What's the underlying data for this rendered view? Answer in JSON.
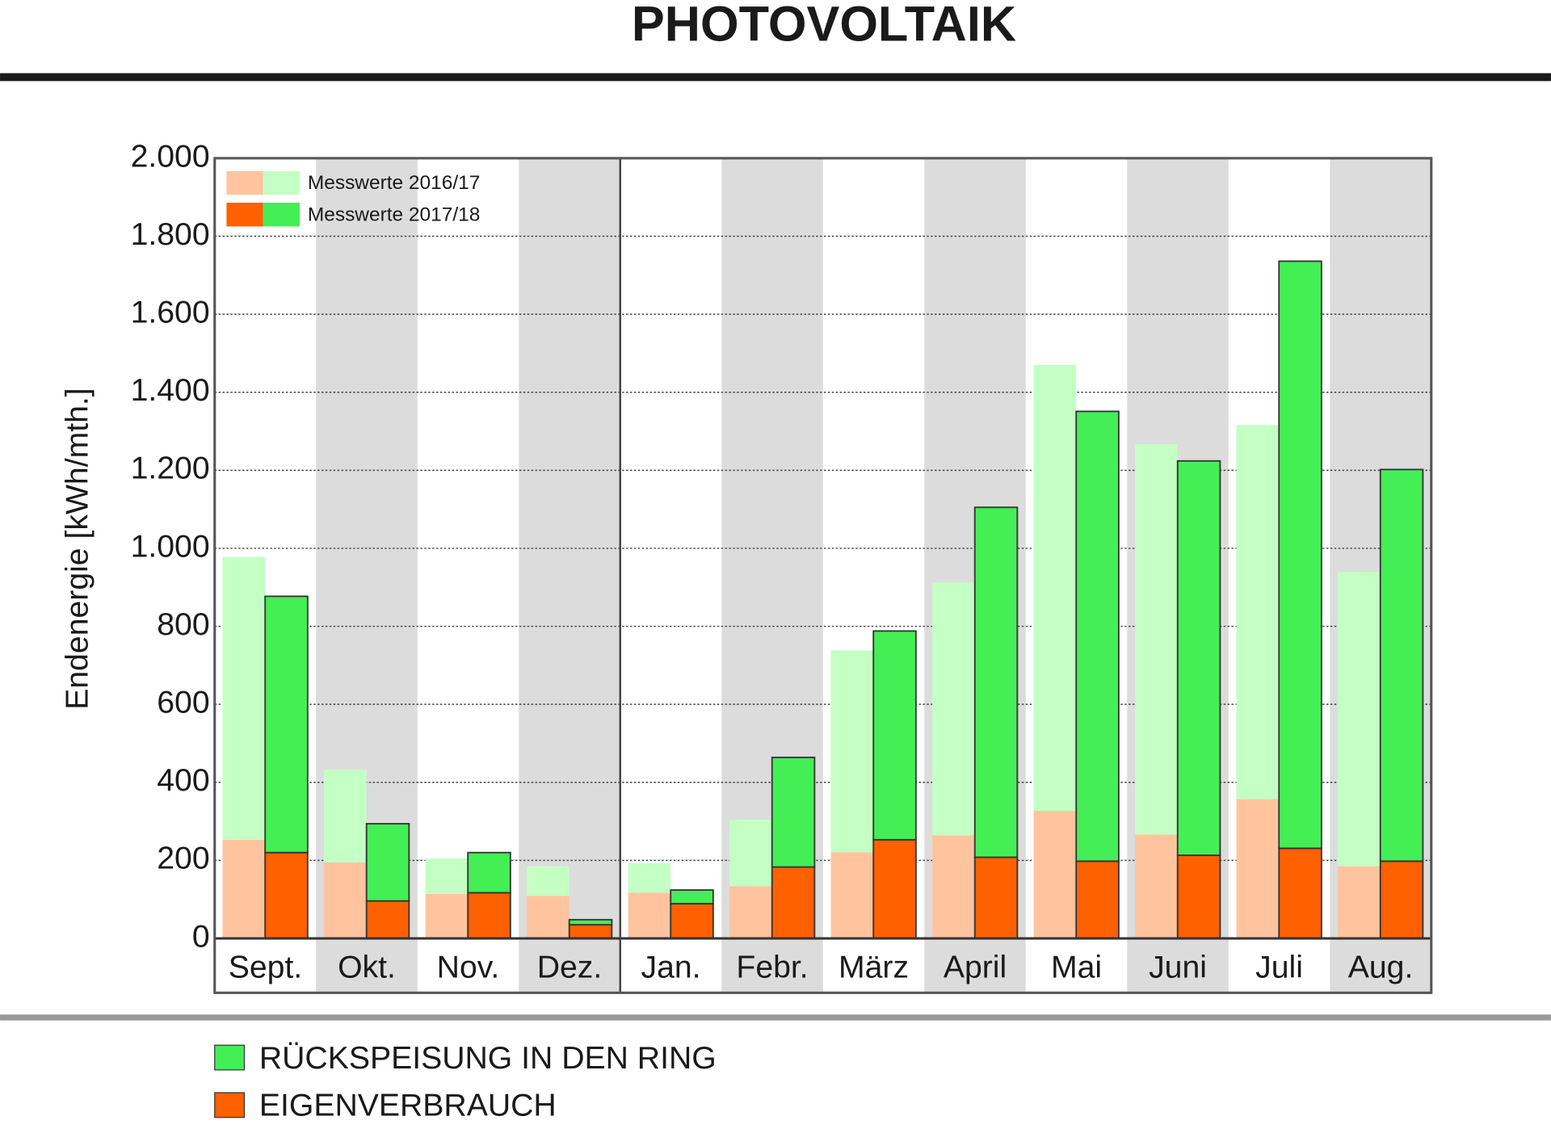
{
  "chart_data": {
    "type": "stacked-bar",
    "title": "PHOTOVOLTAIK",
    "y_label": "Endenergie [kWh/mth.]",
    "categories": [
      "Sept.",
      "Okt.",
      "Nov.",
      "Dez.",
      "Jan.",
      "Febr.",
      "März",
      "April",
      "Mai",
      "Juni",
      "Juli",
      "Aug."
    ],
    "series": [
      {
        "name": "Messwerte 2016/17",
        "eigenverbrauch": {
          "color": "#ffc49e",
          "values": [
            253,
            195,
            114,
            109,
            117,
            134,
            221,
            264,
            327,
            266,
            357,
            185
          ]
        },
        "rueckspeisung": {
          "color": "#c4ffc4",
          "values": [
            725,
            238,
            91,
            76,
            76,
            170,
            517,
            649,
            1143,
            1001,
            959,
            755
          ]
        }
      },
      {
        "name": "Messwerte 2017/18",
        "eigenverbrauch": {
          "color": "#ff6000",
          "values": [
            220,
            96,
            117,
            35,
            89,
            183,
            253,
            208,
            198,
            213,
            231,
            198
          ]
        },
        "rueckspeisung": {
          "color": "#44ee55",
          "values": [
            657,
            198,
            103,
            13,
            35,
            281,
            535,
            897,
            1153,
            1011,
            1505,
            1004
          ]
        }
      }
    ],
    "stack_legend": [
      "RÜCKSPEISUNG IN DEN RING",
      "EIGENVERBRAUCH"
    ],
    "ylim": [
      0,
      2000
    ],
    "yticks": [
      0,
      200,
      400,
      600,
      800,
      {
        "value": 1000,
        "label": "1.000"
      },
      {
        "value": 1200,
        "label": "1.200"
      },
      {
        "value": 1400,
        "label": "1.400"
      },
      {
        "value": 1600,
        "label": "1.600"
      },
      {
        "value": 1800,
        "label": "1.800"
      },
      {
        "value": 2000,
        "label": "2.000"
      }
    ],
    "grid": true
  }
}
